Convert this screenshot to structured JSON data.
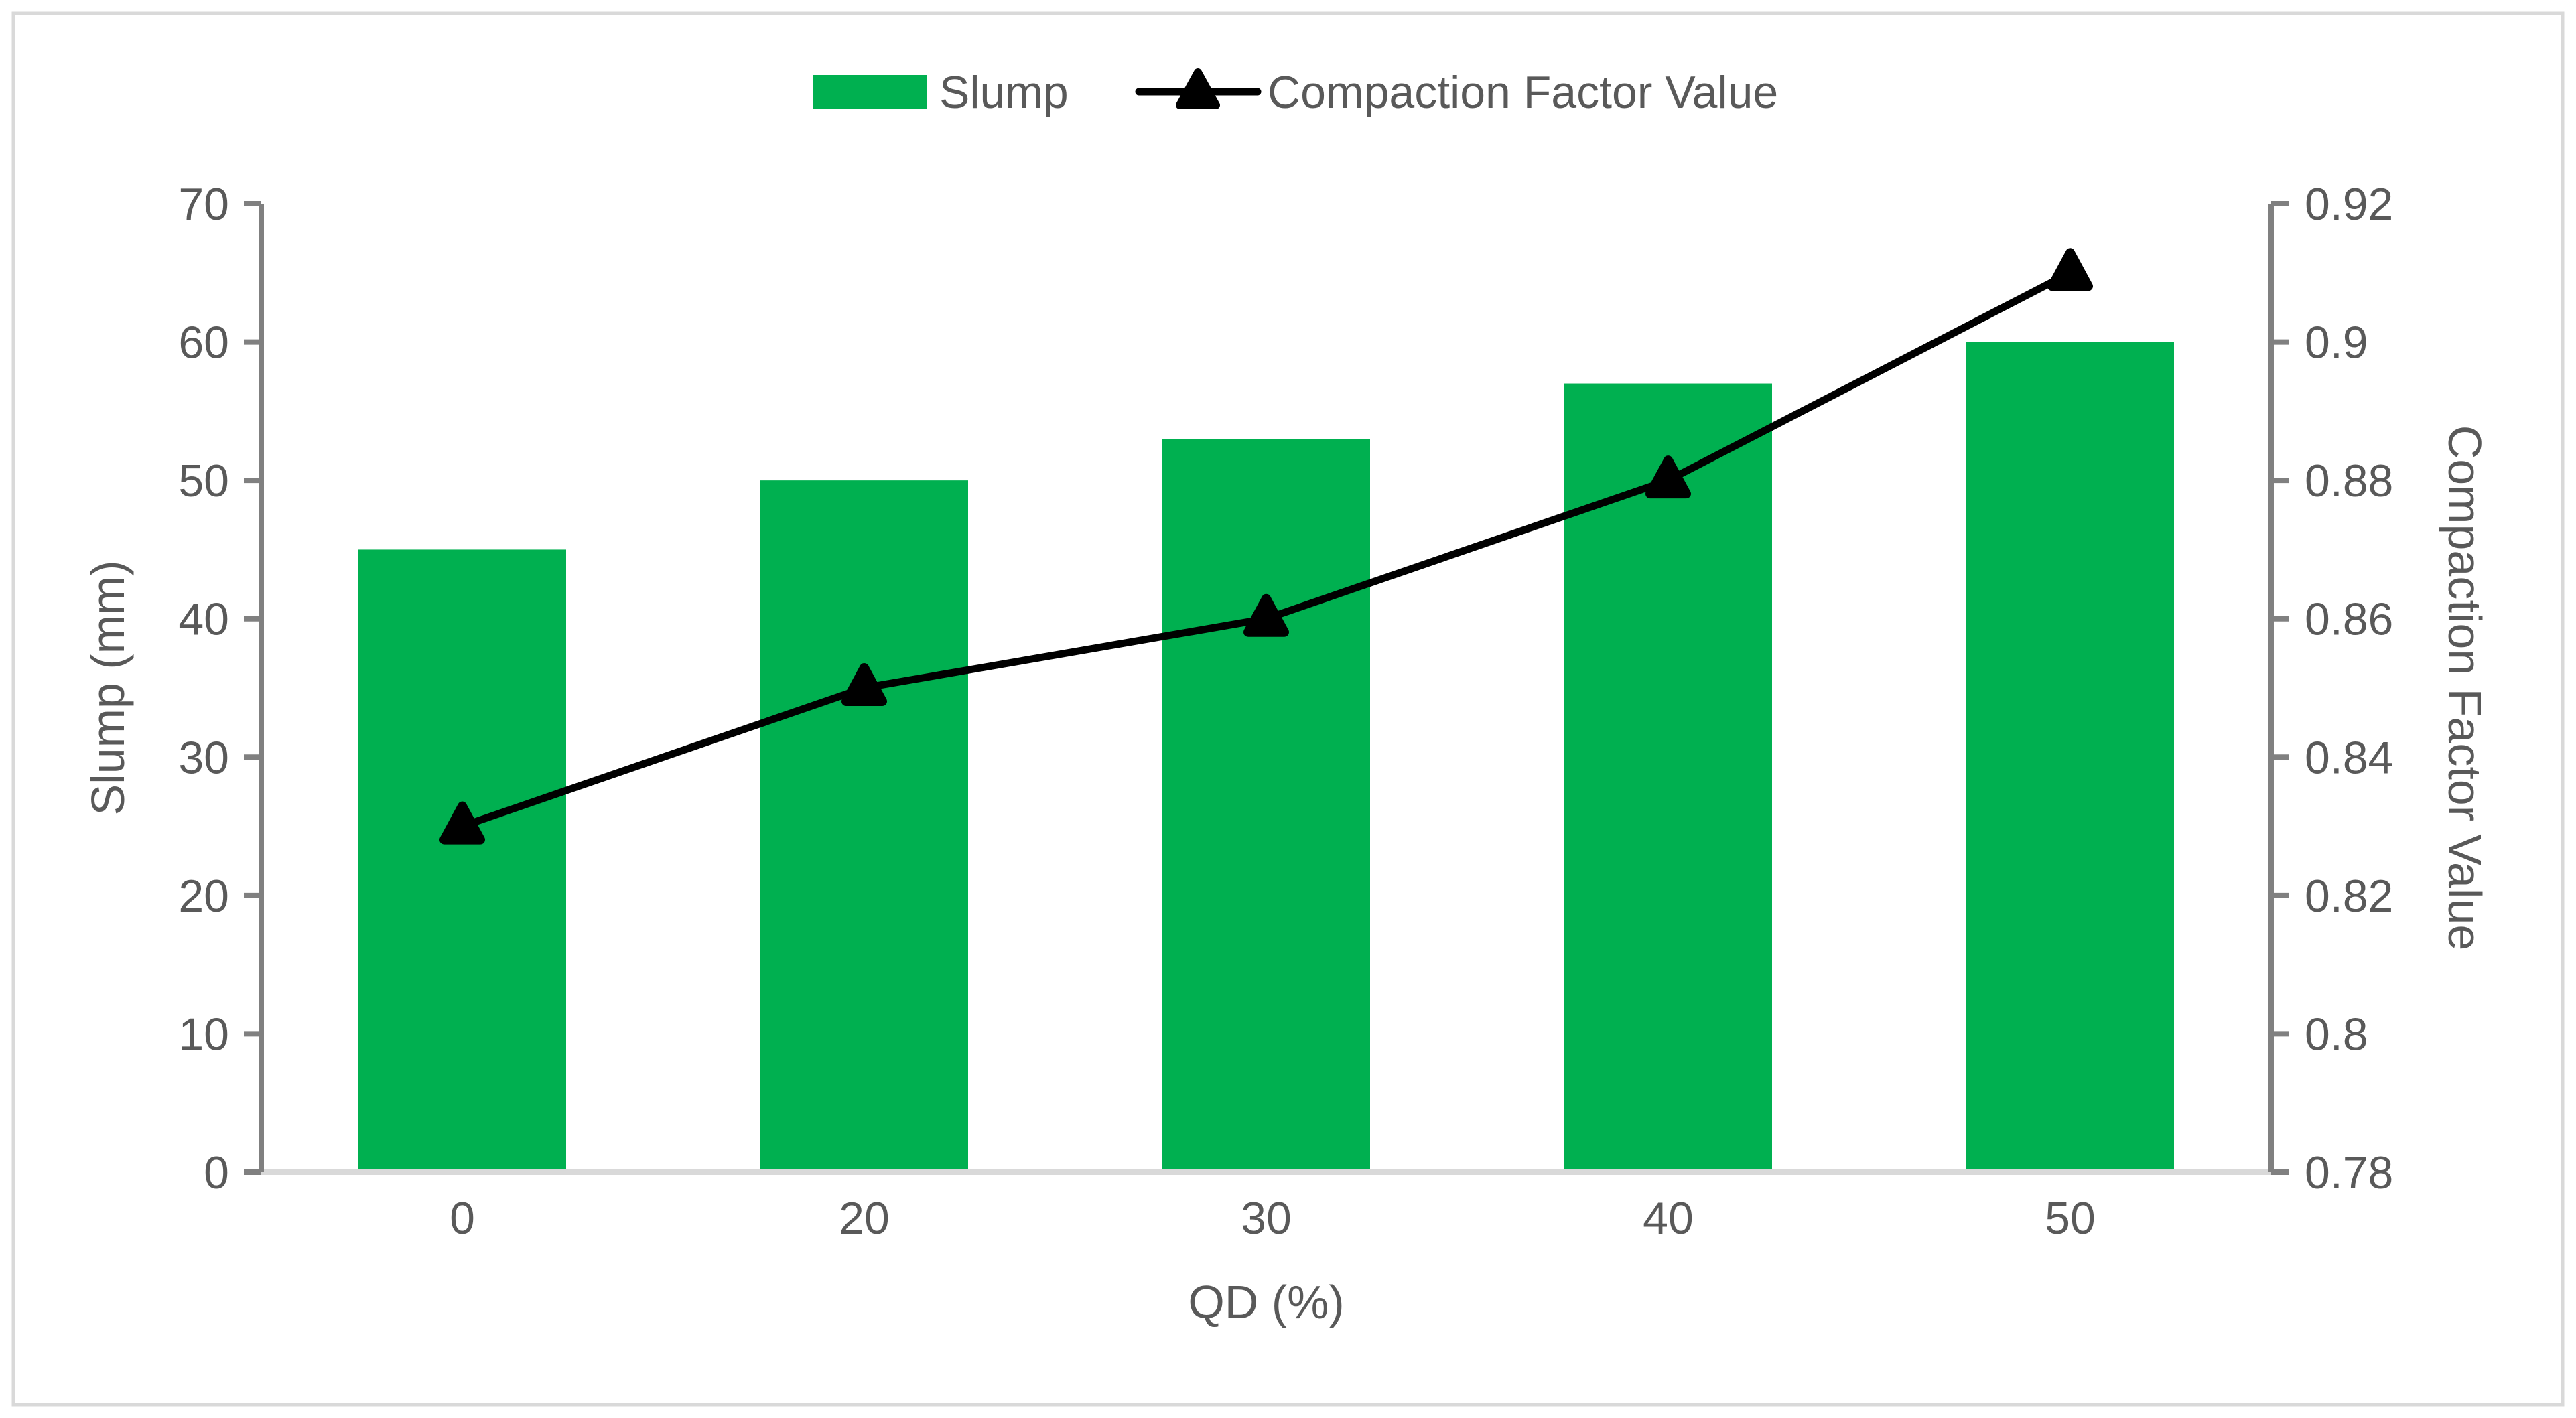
{
  "figure": {
    "background": "#FFFFFF",
    "border_color": "#D9D9D9"
  },
  "legend": {
    "position": "top-center",
    "items": [
      {
        "label": "Slump",
        "swatch": "green-rect"
      },
      {
        "label": "Compaction Factor Value",
        "swatch": "black-line-with-triangle-marker"
      }
    ]
  },
  "chart_data": {
    "type": "combo-bar-line",
    "title": "",
    "categories": [
      "0",
      "20",
      "30",
      "40",
      "50"
    ],
    "series": [
      {
        "name": "Slump",
        "type": "bar",
        "axis": "left",
        "values": [
          45,
          50,
          53,
          57,
          60
        ],
        "color": "#00B050"
      },
      {
        "name": "Compaction Factor Value",
        "type": "line",
        "axis": "right",
        "values": [
          0.83,
          0.85,
          0.86,
          0.88,
          0.91
        ],
        "color": "#000000",
        "marker": "triangle"
      }
    ],
    "xlabel": "QD (%)",
    "ylabel_left": "Slump (mm)",
    "ylabel_right": "Compaction Factor Value",
    "left_axis": {
      "min": 0,
      "max": 70,
      "step": 10,
      "tick_labels": [
        "0",
        "10",
        "20",
        "30",
        "40",
        "50",
        "60",
        "70"
      ]
    },
    "right_axis": {
      "min": 0.78,
      "max": 0.92,
      "step": 0.02,
      "tick_labels": [
        "0.78",
        "0.8",
        "0.82",
        "0.84",
        "0.86",
        "0.88",
        "0.9",
        "0.92"
      ]
    },
    "grid": false,
    "legend_position": "top",
    "colors": {
      "tick_text": "#595959",
      "axis_line_dark": "#808080",
      "axis_line_light": "#D9D9D9",
      "bar_fill": "#00B050",
      "line_stroke": "#000000"
    }
  }
}
